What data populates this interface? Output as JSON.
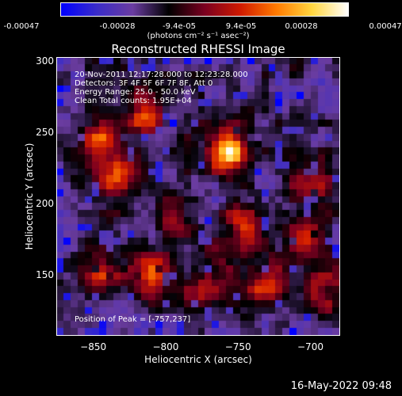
{
  "colorbar": {
    "ticks": [
      "-0.00047",
      "-0.00028",
      "-9.4e-05",
      "9.4e-05",
      "0.00028",
      "0.00047"
    ],
    "unit": "(photons cm⁻² s⁻¹ asec⁻²)",
    "colors": [
      "#0000ff",
      "#3a2cc8",
      "#6a3ca0",
      "#000000",
      "#7a0020",
      "#d01a00",
      "#ff7a00",
      "#ffd640",
      "#ffffff"
    ]
  },
  "chart_data": {
    "type": "heatmap",
    "title": "Reconstructed RHESSI Image",
    "xlabel": "Heliocentric X (arcsec)",
    "ylabel": "Heliocentric Y (arcsec)",
    "xlim": [
      -875,
      -680
    ],
    "ylim": [
      108,
      302
    ],
    "x_ticks": [
      -850,
      -800,
      -750,
      -700
    ],
    "y_ticks": [
      150,
      200,
      250,
      300
    ],
    "value_range": [
      -0.00047,
      0.00047
    ],
    "grid": false,
    "peak": [
      -757,
      237
    ],
    "bright_sources": [
      {
        "x": -757,
        "y": 237,
        "intensity": 1.0
      },
      {
        "x": -845,
        "y": 245,
        "intensity": 0.65
      },
      {
        "x": -815,
        "y": 262,
        "intensity": 0.6
      },
      {
        "x": -835,
        "y": 218,
        "intensity": 0.55
      },
      {
        "x": -795,
        "y": 190,
        "intensity": 0.5
      },
      {
        "x": -810,
        "y": 150,
        "intensity": 0.6
      },
      {
        "x": -745,
        "y": 185,
        "intensity": 0.55
      },
      {
        "x": -730,
        "y": 145,
        "intensity": 0.6
      },
      {
        "x": -705,
        "y": 175,
        "intensity": 0.5
      },
      {
        "x": -700,
        "y": 215,
        "intensity": 0.55
      },
      {
        "x": -845,
        "y": 155,
        "intensity": 0.5
      },
      {
        "x": -775,
        "y": 135,
        "intensity": 0.45
      },
      {
        "x": -690,
        "y": 140,
        "intensity": 0.45
      },
      {
        "x": -760,
        "y": 160,
        "intensity": 0.4
      }
    ],
    "annotations": {
      "time": "20-Nov-2011 12:17:28.000 to 12:23:28.000",
      "detectors": "Detectors: 3F 4F 5F 6F 7F 8F, Att 0",
      "energy": "Energy Range: 25.0 - 50.0 keV",
      "clean": "Clean     Total counts: 1.95E+04",
      "peak_label": "Position of Peak = [-757,237]"
    }
  },
  "timestamp": "16-May-2022 09:48"
}
